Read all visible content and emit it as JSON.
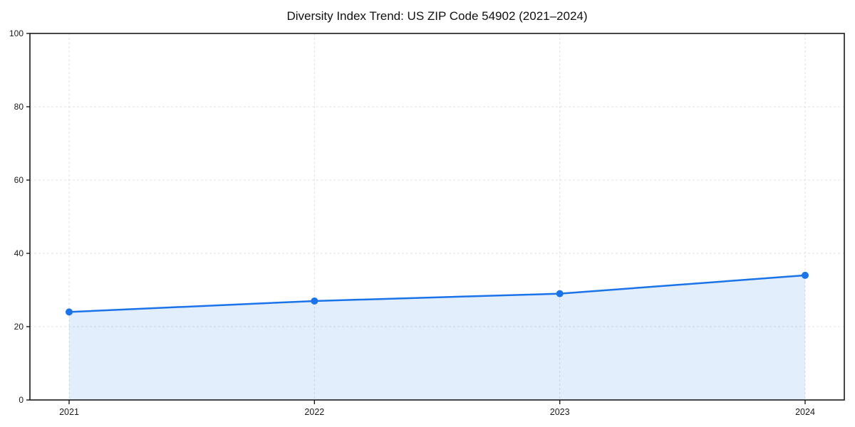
{
  "chart_data": {
    "type": "line",
    "title": "Diversity Index Trend: US ZIP Code 54902 (2021–2024)",
    "x": [
      "2021",
      "2022",
      "2023",
      "2024"
    ],
    "series": [
      {
        "name": "Diversity Index",
        "values": [
          24,
          27,
          29,
          34
        ]
      }
    ],
    "xlabel": "",
    "ylabel": "",
    "ylim": [
      0,
      100
    ],
    "yticks": [
      0,
      20,
      40,
      60,
      80,
      100
    ],
    "grid": "dashed-both-axes",
    "legend": "none",
    "area_fill": true,
    "marker": "circle",
    "colors": {
      "line": "#1a73e8",
      "marker": "#1a73e8",
      "fill": "rgba(26,115,232,0.12)",
      "grid": "#e0e0e0",
      "spine": "#1a1a1a",
      "text": "#1a1a1a"
    }
  }
}
